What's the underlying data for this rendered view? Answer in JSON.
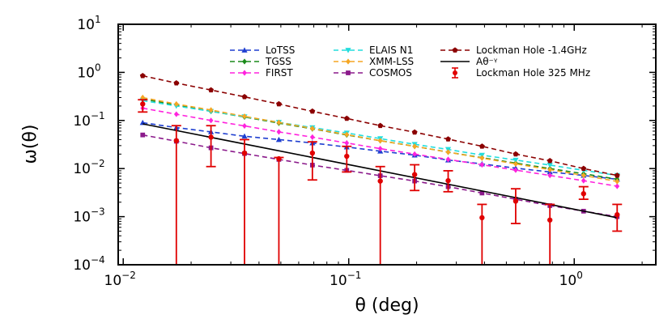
{
  "chart_data": {
    "type": "line",
    "xscale": "log",
    "yscale": "log",
    "xlim": [
      0.0095,
      2.3
    ],
    "ylim": [
      0.0001,
      10
    ],
    "xlabel": "θ (deg)",
    "ylabel": "ω(θ)",
    "xticks": [
      0.01,
      0.1,
      1
    ],
    "xtick_labels": [
      {
        "base": "10",
        "exp": "−2"
      },
      {
        "base": "10",
        "exp": "−1"
      },
      {
        "base": "10",
        "exp": "0"
      }
    ],
    "yticks": [
      0.0001,
      0.001,
      0.01,
      0.1,
      1,
      10
    ],
    "ytick_labels": [
      {
        "base": "10",
        "exp": "−4"
      },
      {
        "base": "10",
        "exp": "−3"
      },
      {
        "base": "10",
        "exp": "−2"
      },
      {
        "base": "10",
        "exp": "−1"
      },
      {
        "base": "10",
        "exp": "0"
      },
      {
        "base": "10",
        "exp": "1"
      }
    ],
    "x": [
      0.0122,
      0.0172,
      0.0245,
      0.0345,
      0.049,
      0.069,
      0.098,
      0.138,
      0.196,
      0.276,
      0.39,
      0.55,
      0.78,
      1.1,
      1.55
    ],
    "series": [
      {
        "name": "LoTSS",
        "color": "#1f3fd0",
        "marker": "triangle",
        "dash": "6,4",
        "values": [
          0.09,
          0.071,
          0.058,
          0.047,
          0.04,
          0.034,
          0.028,
          0.023,
          0.019,
          0.015,
          0.0125,
          0.0102,
          0.0085,
          0.0072,
          0.006
        ]
      },
      {
        "name": "TGSS",
        "color": "#1a8a1a",
        "marker": "diamond",
        "dash": "6,4",
        "values": [
          0.28,
          0.21,
          0.155,
          0.118,
          0.088,
          0.067,
          0.05,
          0.038,
          0.029,
          0.022,
          0.0168,
          0.013,
          0.01,
          0.0078,
          0.006
        ]
      },
      {
        "name": "FIRST",
        "color": "#ff22dd",
        "marker": "diamond",
        "dash": "6,4",
        "values": [
          0.18,
          0.135,
          0.1,
          0.077,
          0.058,
          0.045,
          0.034,
          0.026,
          0.02,
          0.0155,
          0.012,
          0.0093,
          0.0072,
          0.0056,
          0.0043
        ]
      },
      {
        "name": "ELAIS N1",
        "color": "#22dddd",
        "marker": "triangle-down",
        "dash": "6,4",
        "values": [
          0.26,
          0.2,
          0.155,
          0.12,
          0.092,
          0.071,
          0.055,
          0.042,
          0.032,
          0.025,
          0.019,
          0.015,
          0.0118,
          0.0092,
          0.0072
        ]
      },
      {
        "name": "XMM-LSS",
        "color": "#f5a623",
        "marker": "diamond",
        "dash": "6,4",
        "values": [
          0.3,
          0.22,
          0.165,
          0.122,
          0.091,
          0.068,
          0.051,
          0.038,
          0.029,
          0.022,
          0.0165,
          0.0125,
          0.0095,
          0.0072,
          0.0054
        ]
      },
      {
        "name": "COSMOS",
        "color": "#8b1a8b",
        "marker": "square",
        "dash": "6,4",
        "values": [
          0.05,
          0.037,
          0.027,
          0.0205,
          0.0155,
          0.0118,
          0.0092,
          0.0071,
          0.0055,
          0.0042,
          0.0031,
          0.0023,
          0.0017,
          0.0013,
          0.001
        ]
      },
      {
        "name": "Lockman Hole  -1.4GHz",
        "color": "#8b0000",
        "marker": "pentagon",
        "dash": "6,4",
        "values": [
          0.85,
          0.6,
          0.43,
          0.31,
          0.22,
          0.155,
          0.11,
          0.078,
          0.057,
          0.041,
          0.029,
          0.02,
          0.0145,
          0.01,
          0.0072
        ]
      }
    ],
    "fit": {
      "name": "Aθ⁻ᵞ",
      "color": "#000000",
      "x": [
        0.0122,
        1.55
      ],
      "values": [
        0.085,
        0.00095
      ]
    },
    "errorbar_series": {
      "name": "Lockman Hole 325 MHz",
      "color": "#e00000",
      "x": [
        0.0122,
        0.0172,
        0.0245,
        0.0345,
        0.049,
        0.069,
        0.098,
        0.138,
        0.196,
        0.276,
        0.39,
        0.55,
        0.78,
        1.1,
        1.55
      ],
      "values": [
        0.22,
        0.038,
        0.045,
        0.021,
        0.016,
        0.021,
        0.018,
        0.0055,
        0.0075,
        0.0056,
        0.00095,
        0.0021,
        0.00085,
        0.003,
        0.0011
      ],
      "lower": [
        0.15,
        0.0001,
        0.011,
        0.0001,
        0.0001,
        0.0058,
        0.0085,
        0.0001,
        0.0035,
        0.0033,
        0.0001,
        0.00072,
        0.0001,
        0.0023,
        0.0005
      ],
      "upper": [
        0.27,
        0.078,
        0.078,
        0.04,
        0.017,
        0.036,
        0.029,
        0.011,
        0.012,
        0.009,
        0.0018,
        0.0038,
        0.0018,
        0.0042,
        0.0018
      ]
    },
    "legend": {
      "placement": "top-right",
      "entries": [
        "LoTSS",
        "TGSS",
        "FIRST",
        "ELAIS N1",
        "XMM-LSS",
        "COSMOS",
        "Lockman Hole  -1.4GHz",
        "Aθ⁻ᵞ",
        "Lockman Hole 325 MHz"
      ]
    },
    "grid": false
  }
}
